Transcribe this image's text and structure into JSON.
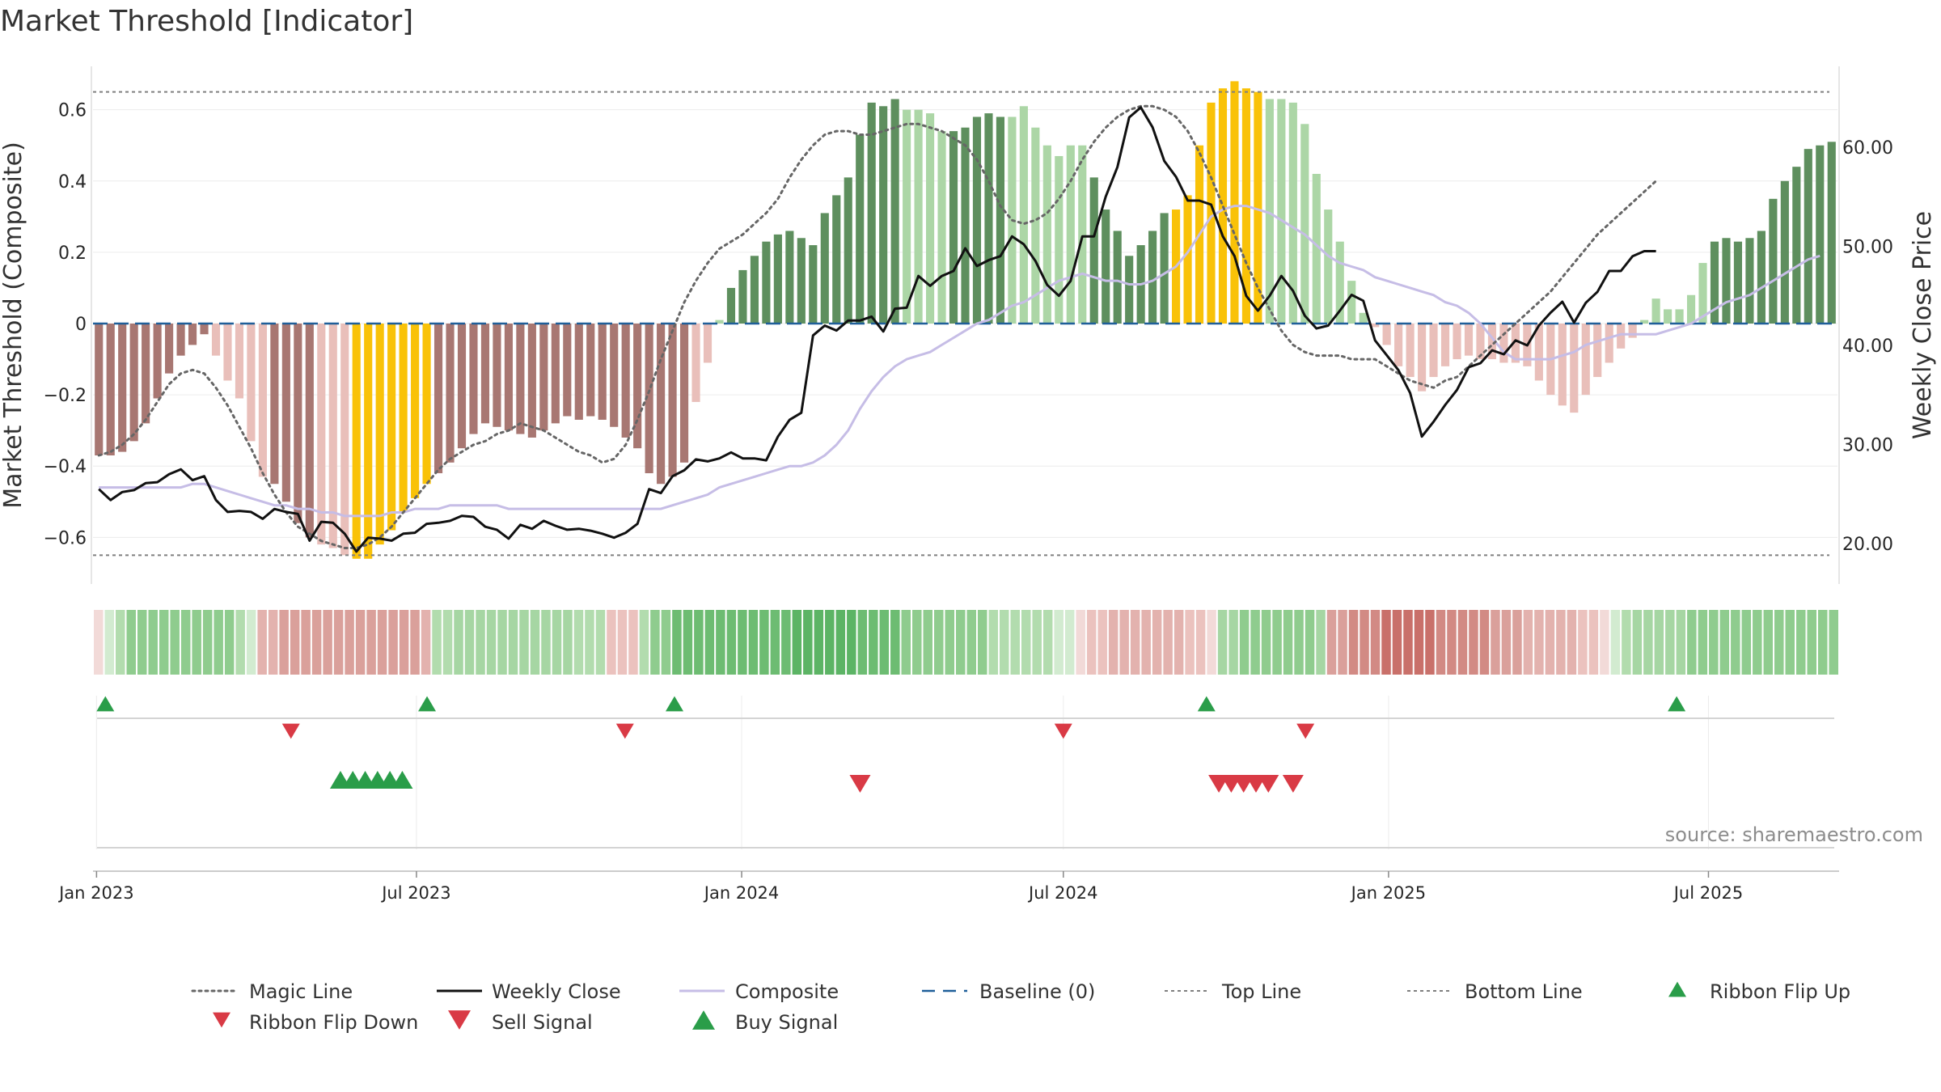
{
  "title": "Market Threshold [Indicator]",
  "source": "source: sharemaestro.com",
  "colors": {
    "up_dark": "#5e8f5e",
    "up_light": "#acd6a6",
    "down_dark": "#a87772",
    "down_light": "#e9bfba",
    "extreme": "#f9c208",
    "magic": "#666666",
    "close": "#111111",
    "composite": "#c6bde6",
    "baseline": "#1f5f99",
    "topbottom": "#7f7f7f",
    "buy": "#2a9d49",
    "sell": "#d93a45"
  },
  "chart_data": {
    "type": "bar",
    "left_axis": {
      "label": "Market Threshold (Composite)",
      "ylim": [
        -0.74,
        0.74
      ],
      "ticks": [
        0.6,
        0.4,
        0.2,
        0,
        -0.2,
        -0.4,
        -0.6
      ],
      "tick_labels": [
        "0.6",
        "0.4",
        "0.2",
        "0",
        "−0.2",
        "−0.4",
        "−0.6"
      ]
    },
    "right_axis": {
      "label": "Weekly Close Price",
      "ylim": [
        15.6,
        68.8
      ],
      "ticks": [
        60,
        50,
        40,
        30,
        20
      ],
      "tick_labels": [
        "60.00",
        "50.00",
        "40.00",
        "30.00",
        "20.00"
      ]
    },
    "x_axis": {
      "start": "2022-12-30",
      "end": "2025-09-12",
      "ticks": [
        {
          "date": "2023-01-01",
          "label": "Jan 2023"
        },
        {
          "date": "2023-07-01",
          "label": "Jul 2023"
        },
        {
          "date": "2024-01-01",
          "label": "Jan 2024"
        },
        {
          "date": "2024-07-01",
          "label": "Jul 2024"
        },
        {
          "date": "2025-01-01",
          "label": "Jan 2025"
        },
        {
          "date": "2025-07-01",
          "label": "Jul 2025"
        }
      ]
    },
    "top_line": 0.65,
    "bottom_line": -0.65,
    "baseline": 0,
    "grid": true,
    "bars_composite_weekly": [
      -0.37,
      -0.37,
      -0.36,
      -0.33,
      -0.28,
      -0.21,
      -0.14,
      -0.09,
      -0.06,
      -0.03,
      -0.09,
      -0.16,
      -0.21,
      -0.33,
      -0.43,
      -0.45,
      -0.5,
      -0.56,
      -0.6,
      -0.62,
      -0.63,
      -0.65,
      -0.66,
      -0.66,
      -0.62,
      -0.58,
      -0.53,
      -0.49,
      -0.45,
      -0.42,
      -0.39,
      -0.35,
      -0.31,
      -0.28,
      -0.29,
      -0.3,
      -0.31,
      -0.32,
      -0.3,
      -0.28,
      -0.26,
      -0.27,
      -0.26,
      -0.27,
      -0.29,
      -0.32,
      -0.35,
      -0.42,
      -0.45,
      -0.43,
      -0.39,
      -0.22,
      -0.11,
      0.01,
      0.1,
      0.15,
      0.19,
      0.23,
      0.25,
      0.26,
      0.24,
      0.22,
      0.31,
      0.36,
      0.41,
      0.53,
      0.62,
      0.61,
      0.63,
      0.6,
      0.6,
      0.59,
      0.54,
      0.54,
      0.55,
      0.58,
      0.59,
      0.58,
      0.58,
      0.61,
      0.55,
      0.5,
      0.47,
      0.5,
      0.5,
      0.41,
      0.32,
      0.26,
      0.19,
      0.22,
      0.26,
      0.31,
      0.32,
      0.36,
      0.5,
      0.62,
      0.66,
      0.68,
      0.66,
      0.65,
      0.63,
      0.63,
      0.62,
      0.56,
      0.42,
      0.32,
      0.23,
      0.12,
      0.03,
      -0.01,
      -0.06,
      -0.12,
      -0.15,
      -0.19,
      -0.15,
      -0.12,
      -0.1,
      -0.09,
      -0.1,
      -0.1,
      -0.11,
      -0.11,
      -0.12,
      -0.16,
      -0.2,
      -0.23,
      -0.25,
      -0.2,
      -0.15,
      -0.11,
      -0.07,
      -0.04,
      0.01,
      0.07,
      0.04,
      0.04,
      0.08,
      0.17,
      0.23,
      0.24,
      0.23,
      0.24,
      0.26,
      0.35,
      0.4,
      0.44,
      0.49,
      0.5,
      0.51
    ],
    "bar_colour_sequence": "DDDDDDDDDDLLLLLDDDDLLLEEEEEEEDDDDDDDDDDDDDDDDDDDDDDLLLUUUUUUUUUUUUUUULLLLUUUUULLLLLLLUUUUUUUEEEEEEEEDDDDLLLLLLLLLLLLLLLLLLLLLLLLLLLLDDDDDDUUUUUUUUUUUUUUU",
    "magic_line_weekly": [
      -0.37,
      -0.36,
      -0.34,
      -0.31,
      -0.27,
      -0.22,
      -0.17,
      -0.14,
      -0.13,
      -0.14,
      -0.18,
      -0.23,
      -0.29,
      -0.35,
      -0.42,
      -0.48,
      -0.53,
      -0.57,
      -0.59,
      -0.61,
      -0.62,
      -0.63,
      -0.63,
      -0.62,
      -0.6,
      -0.57,
      -0.53,
      -0.49,
      -0.45,
      -0.41,
      -0.38,
      -0.36,
      -0.34,
      -0.33,
      -0.31,
      -0.3,
      -0.28,
      -0.29,
      -0.3,
      -0.32,
      -0.34,
      -0.36,
      -0.37,
      -0.39,
      -0.38,
      -0.34,
      -0.27,
      -0.19,
      -0.1,
      -0.02,
      0.06,
      0.12,
      0.17,
      0.21,
      0.23,
      0.25,
      0.28,
      0.31,
      0.35,
      0.41,
      0.46,
      0.5,
      0.53,
      0.54,
      0.54,
      0.53,
      0.53,
      0.54,
      0.55,
      0.56,
      0.56,
      0.55,
      0.54,
      0.52,
      0.5,
      0.46,
      0.4,
      0.33,
      0.29,
      0.28,
      0.29,
      0.31,
      0.35,
      0.4,
      0.46,
      0.51,
      0.55,
      0.58,
      0.6,
      0.61,
      0.61,
      0.6,
      0.58,
      0.54,
      0.48,
      0.41,
      0.33,
      0.25,
      0.17,
      0.1,
      0.04,
      -0.02,
      -0.06,
      -0.08,
      -0.09,
      -0.09,
      -0.09,
      -0.1,
      -0.1,
      -0.1,
      -0.12,
      -0.14,
      -0.16,
      -0.17,
      -0.18,
      -0.16,
      -0.15,
      -0.12,
      -0.09,
      -0.06,
      -0.03,
      0.0,
      0.03,
      0.06,
      0.09,
      0.13,
      0.17,
      0.21,
      0.25,
      0.28,
      0.31,
      0.34,
      0.37,
      0.4
    ],
    "composite_line_weekly": [
      -0.46,
      -0.46,
      -0.46,
      -0.46,
      -0.46,
      -0.46,
      -0.46,
      -0.46,
      -0.45,
      -0.45,
      -0.46,
      -0.47,
      -0.48,
      -0.49,
      -0.5,
      -0.51,
      -0.51,
      -0.52,
      -0.52,
      -0.53,
      -0.53,
      -0.54,
      -0.54,
      -0.54,
      -0.54,
      -0.53,
      -0.53,
      -0.52,
      -0.52,
      -0.52,
      -0.51,
      -0.51,
      -0.51,
      -0.51,
      -0.51,
      -0.52,
      -0.52,
      -0.52,
      -0.52,
      -0.52,
      -0.52,
      -0.52,
      -0.52,
      -0.52,
      -0.52,
      -0.52,
      -0.52,
      -0.52,
      -0.52,
      -0.51,
      -0.5,
      -0.49,
      -0.48,
      -0.46,
      -0.45,
      -0.44,
      -0.43,
      -0.42,
      -0.41,
      -0.4,
      -0.4,
      -0.39,
      -0.37,
      -0.34,
      -0.3,
      -0.24,
      -0.19,
      -0.15,
      -0.12,
      -0.1,
      -0.09,
      -0.08,
      -0.06,
      -0.04,
      -0.02,
      0.0,
      0.01,
      0.03,
      0.05,
      0.06,
      0.08,
      0.1,
      0.12,
      0.13,
      0.14,
      0.13,
      0.12,
      0.12,
      0.11,
      0.11,
      0.12,
      0.14,
      0.16,
      0.2,
      0.25,
      0.3,
      0.32,
      0.33,
      0.33,
      0.32,
      0.31,
      0.29,
      0.27,
      0.25,
      0.22,
      0.19,
      0.17,
      0.16,
      0.15,
      0.13,
      0.12,
      0.11,
      0.1,
      0.09,
      0.08,
      0.06,
      0.05,
      0.03,
      0.0,
      -0.04,
      -0.08,
      -0.1,
      -0.1,
      -0.1,
      -0.1,
      -0.09,
      -0.08,
      -0.06,
      -0.05,
      -0.04,
      -0.03,
      -0.03,
      -0.03,
      -0.03,
      -0.02,
      -0.01,
      0.0,
      0.02,
      0.04,
      0.06,
      0.07,
      0.08,
      0.1,
      0.12,
      0.14,
      0.16,
      0.18,
      0.19
    ],
    "weekly_close_weekly": [
      25.5,
      24.4,
      25.2,
      25.4,
      26.1,
      26.2,
      27.0,
      27.5,
      26.4,
      26.8,
      24.4,
      23.2,
      23.3,
      23.2,
      22.5,
      23.5,
      23.2,
      23.0,
      20.3,
      22.2,
      22.1,
      21.0,
      19.2,
      20.6,
      20.5,
      20.3,
      21.0,
      21.1,
      22.0,
      22.1,
      22.3,
      22.8,
      22.7,
      21.7,
      21.4,
      20.5,
      21.9,
      21.5,
      22.3,
      21.8,
      21.4,
      21.5,
      21.3,
      21.0,
      20.6,
      21.1,
      22.0,
      25.5,
      25.1,
      26.8,
      27.4,
      28.5,
      28.3,
      28.6,
      29.2,
      28.6,
      28.6,
      28.4,
      30.8,
      32.5,
      33.2,
      41.0,
      42.0,
      41.5,
      42.5,
      42.5,
      42.9,
      41.4,
      43.7,
      43.8,
      47.0,
      46.0,
      47.0,
      47.5,
      49.8,
      48.0,
      48.6,
      49.0,
      51.0,
      50.2,
      48.5,
      46.1,
      45.0,
      46.5,
      51.0,
      51.0,
      55.0,
      58.0,
      63.0,
      64.0,
      62.0,
      58.6,
      57.0,
      54.6,
      54.6,
      54.2,
      51.0,
      49.0,
      45.0,
      43.5,
      45.0,
      47.0,
      45.5,
      43.0,
      41.7,
      42.0,
      43.5,
      45.1,
      44.5,
      40.5,
      39.0,
      37.5,
      35.2,
      30.8,
      32.3,
      34.0,
      35.5,
      37.8,
      38.2,
      39.5,
      39.1,
      40.5,
      40.0,
      42.0,
      43.3,
      44.4,
      42.3,
      44.3,
      45.4,
      47.5,
      47.5,
      49.0,
      49.5,
      49.5
    ]
  },
  "ribbon_colors": [
    "#f2dad8",
    "#d2ebd0",
    "#b2dcae",
    "#8fcc8e",
    "#8fcc8e",
    "#8fcc8e",
    "#8fcc8e",
    "#8fcc8e",
    "#8fcc8e",
    "#8fcc8e",
    "#8fcc8e",
    "#8fcc8e",
    "#8fcc8e",
    "#b2dcae",
    "#d2ebd0",
    "#e3b2ae",
    "#e3b2ae",
    "#daa09b",
    "#daa09b",
    "#daa09b",
    "#daa09b",
    "#daa09b",
    "#daa09b",
    "#daa09b",
    "#daa09b",
    "#daa09b",
    "#daa09b",
    "#daa09b",
    "#daa09b",
    "#daa09b",
    "#e3b2ae",
    "#b2dcae",
    "#b2dcae",
    "#a6d6a3",
    "#a6d6a3",
    "#a6d6a3",
    "#a6d6a3",
    "#a6d6a3",
    "#a6d6a3",
    "#a6d6a3",
    "#a6d6a3",
    "#a6d6a3",
    "#a6d6a3",
    "#a6d6a3",
    "#b2dcae",
    "#b2dcae",
    "#b2dcae",
    "#ebc2be",
    "#ebc2be",
    "#ebc2be",
    "#b2dcae",
    "#8fcc8e",
    "#8fcc8e",
    "#6dbc72",
    "#6dbc72",
    "#6dbc72",
    "#6dbc72",
    "#6dbc72",
    "#6dbc72",
    "#6dbc72",
    "#6dbc72",
    "#6dbc72",
    "#6dbc72",
    "#6dbc72",
    "#5cb465",
    "#5cb465",
    "#5cb465",
    "#5cb465",
    "#5cb465",
    "#5cb465",
    "#6dbc72",
    "#6dbc72",
    "#6dbc72",
    "#6dbc72",
    "#8fcc8e",
    "#8fcc8e",
    "#8fcc8e",
    "#8fcc8e",
    "#8fcc8e",
    "#8fcc8e",
    "#8fcc8e",
    "#8fcc8e",
    "#b2dcae",
    "#b2dcae",
    "#b2dcae",
    "#b2dcae",
    "#b2dcae",
    "#b2dcae",
    "#d2ebd0",
    "#d2ebd0",
    "#f2dad8",
    "#ebc2be",
    "#ebc2be",
    "#e3b2ae",
    "#e3b2ae",
    "#e3b2ae",
    "#e3b2ae",
    "#e3b2ae",
    "#e3b2ae",
    "#e3b2ae",
    "#ebc2be",
    "#ebc2be",
    "#f2dad8",
    "#a6d6a3",
    "#a6d6a3",
    "#8fcc8e",
    "#8fcc8e",
    "#8fcc8e",
    "#8fcc8e",
    "#8fcc8e",
    "#8fcc8e",
    "#8fcc8e",
    "#a6d6a3",
    "#daa09b",
    "#daa09b",
    "#d28a84",
    "#d28a84",
    "#d28a84",
    "#c9706a",
    "#c9706a",
    "#c9706a",
    "#c9706a",
    "#c9706a",
    "#d28a84",
    "#d28a84",
    "#d28a84",
    "#d28a84",
    "#d28a84",
    "#daa09b",
    "#daa09b",
    "#daa09b",
    "#e3b2ae",
    "#e3b2ae",
    "#e3b2ae",
    "#e3b2ae",
    "#e3b2ae",
    "#ebc2be",
    "#ebc2be",
    "#f2dad8",
    "#d2ebd0",
    "#b2dcae",
    "#a6d6a3",
    "#a6d6a3",
    "#a6d6a3",
    "#a6d6a3",
    "#a6d6a3",
    "#8fcc8e",
    "#8fcc8e",
    "#8fcc8e",
    "#8fcc8e",
    "#8fcc8e",
    "#8fcc8e",
    "#8fcc8e",
    "#8fcc8e",
    "#8fcc8e",
    "#8fcc8e",
    "#8fcc8e",
    "#8fcc8e",
    "#8fcc8e",
    "#8fcc8e"
  ],
  "ribbon_flip_up_dates": [
    "2023-01-06",
    "2023-07-07",
    "2023-11-24",
    "2024-09-20",
    "2025-06-13"
  ],
  "ribbon_flip_down_dates": [
    "2023-04-21",
    "2023-10-27",
    "2024-07-01",
    "2024-11-15"
  ],
  "buy_signal_dates": [
    "2023-05-19",
    "2023-05-26",
    "2023-06-02",
    "2023-06-09",
    "2023-06-16",
    "2023-06-23"
  ],
  "sell_signal_dates": [
    "2024-03-08",
    "2024-09-27",
    "2024-10-04",
    "2024-10-11",
    "2024-10-18",
    "2024-10-25",
    "2024-11-08"
  ],
  "legend": [
    {
      "label": "Magic Line",
      "style": "dotted"
    },
    {
      "label": "Weekly Close",
      "style": "solid-black"
    },
    {
      "label": "Composite",
      "style": "solid-lavender"
    },
    {
      "label": "Baseline (0)",
      "style": "dashed-blue"
    },
    {
      "label": "Top Line",
      "style": "dashed-grey"
    },
    {
      "label": "Bottom Line",
      "style": "dashed-grey"
    },
    {
      "label": "Ribbon Flip Up",
      "style": "triangle-up-green"
    },
    {
      "label": "Ribbon Flip Down",
      "style": "triangle-down-red"
    },
    {
      "label": "Sell Signal",
      "style": "triangle-down-red-large"
    },
    {
      "label": "Buy Signal",
      "style": "triangle-up-green-large"
    }
  ]
}
